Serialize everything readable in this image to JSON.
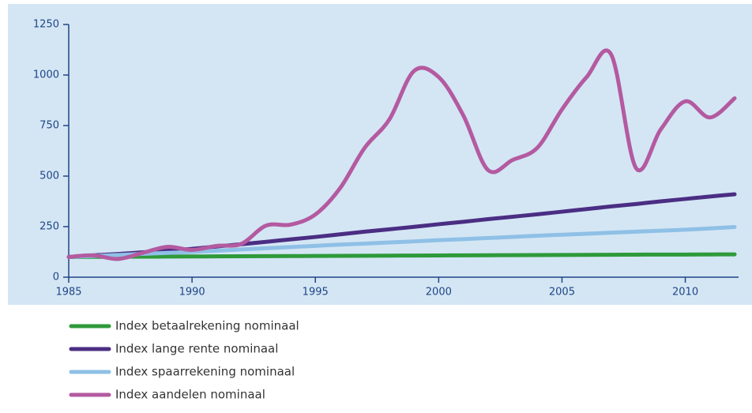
{
  "chart_data": {
    "type": "line",
    "x": [
      1985,
      1986,
      1987,
      1988,
      1989,
      1990,
      1991,
      1992,
      1993,
      1994,
      1995,
      1996,
      1997,
      1998,
      1999,
      2000,
      2001,
      2002,
      2003,
      2004,
      2005,
      2006,
      2007,
      2008,
      2009,
      2010,
      2011,
      2012
    ],
    "xlim": [
      1985,
      2012
    ],
    "xticks": [
      1985,
      1990,
      1995,
      2000,
      2005,
      2010
    ],
    "ylim": [
      0,
      1250
    ],
    "yticks": [
      0,
      250,
      500,
      750,
      1000,
      1250
    ],
    "background": "#d4e6f4",
    "series": [
      {
        "name": "Index betaalrekening nominaal",
        "color": "#2e9a3a",
        "values": [
          100,
          100.5,
          101,
          101.5,
          102,
          102.5,
          103,
          103.5,
          104,
          104.5,
          105,
          105.5,
          106,
          106.5,
          107,
          107.5,
          108,
          108.5,
          109,
          109.5,
          110,
          110.5,
          111,
          111.5,
          112,
          112,
          112.5,
          113
        ]
      },
      {
        "name": "Index lange rente nominaal",
        "color": "#4b2e83",
        "values": [
          100,
          108,
          115,
          123,
          131,
          140,
          152,
          163,
          175,
          187,
          199,
          212,
          225,
          237,
          249,
          262,
          274,
          287,
          299,
          311,
          324,
          337,
          350,
          362,
          375,
          387,
          399,
          410
        ]
      },
      {
        "name": "Index spaarrekening nominaal",
        "color": "#8fc0e6",
        "values": [
          100,
          105,
          110,
          115,
          120,
          125,
          131,
          137,
          143,
          149,
          155,
          161,
          166,
          172,
          177,
          183,
          188,
          194,
          199,
          205,
          210,
          215,
          220,
          225,
          230,
          235,
          241,
          248
        ]
      },
      {
        "name": "Index aandelen nominaal",
        "color": "#b45aa0",
        "values": [
          100,
          108,
          90,
          120,
          150,
          135,
          155,
          165,
          255,
          260,
          310,
          440,
          640,
          780,
          1020,
          990,
          800,
          530,
          580,
          640,
          830,
          990,
          1100,
          540,
          730,
          870,
          790,
          885
        ]
      }
    ]
  }
}
